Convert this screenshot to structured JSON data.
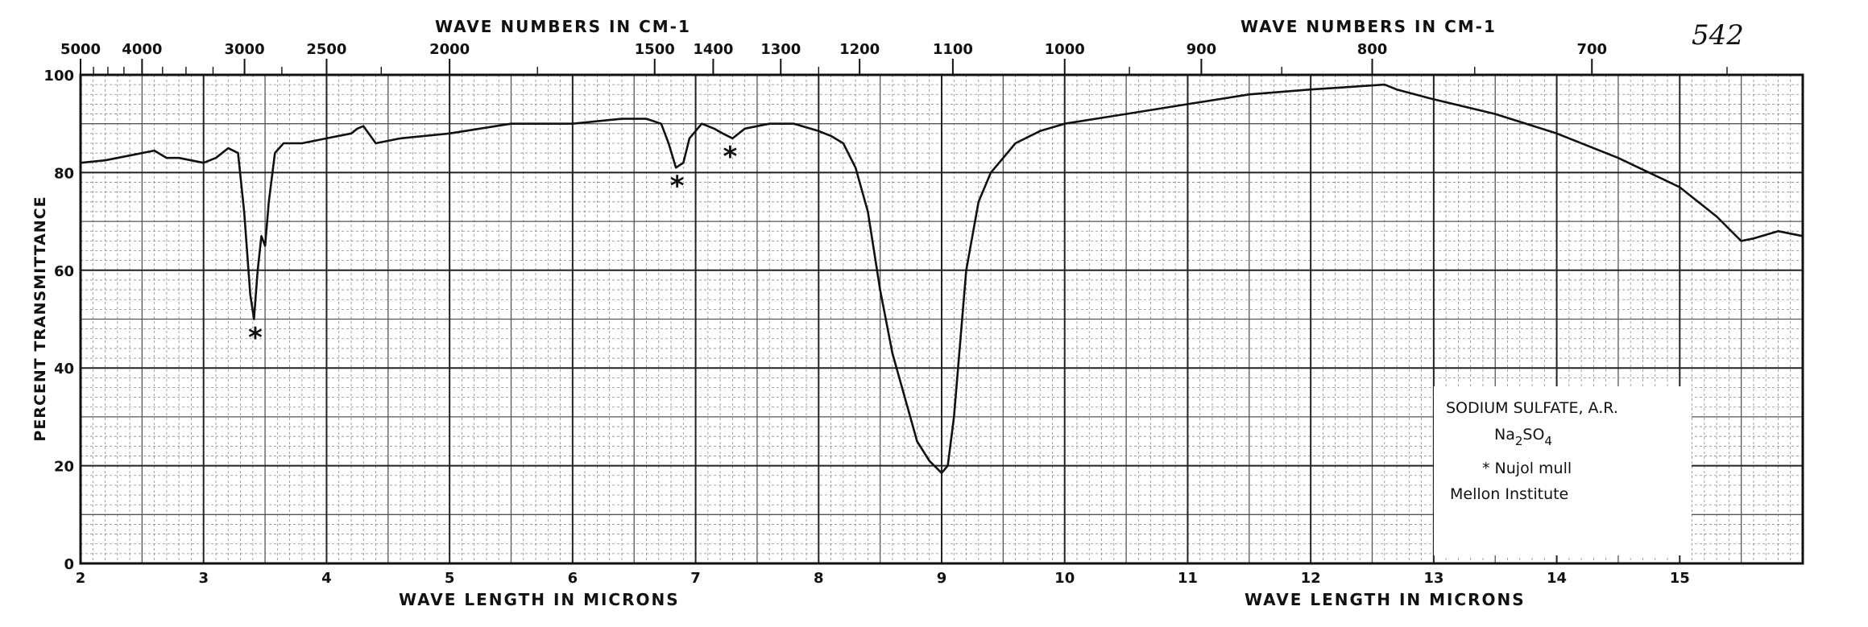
{
  "chart_data": {
    "type": "line",
    "page_number": "542",
    "top_axis_label_left": "WAVE NUMBERS IN CM-1",
    "top_axis_label_right": "WAVE NUMBERS IN CM-1",
    "xlabel_left": "WAVE LENGTH IN MICRONS",
    "xlabel_right": "WAVE LENGTH IN MICRONS",
    "ylabel": "PERCENT TRANSMITTANCE",
    "xlim": [
      2,
      16
    ],
    "ylim": [
      0,
      100
    ],
    "x_ticks": [
      "2",
      "3",
      "4",
      "5",
      "6",
      "7",
      "8",
      "9",
      "10",
      "11",
      "12",
      "13",
      "14",
      "15"
    ],
    "y_ticks": [
      "0",
      "20",
      "40",
      "60",
      "80",
      "100"
    ],
    "top_ticks": [
      {
        "label": "5000",
        "micron": 2.0
      },
      {
        "label": "4000",
        "micron": 2.5
      },
      {
        "label": "3000",
        "micron": 3.333
      },
      {
        "label": "2500",
        "micron": 4.0
      },
      {
        "label": "2000",
        "micron": 5.0
      },
      {
        "label": "1500",
        "micron": 6.667
      },
      {
        "label": "1400",
        "micron": 7.143
      },
      {
        "label": "1300",
        "micron": 7.692
      },
      {
        "label": "1200",
        "micron": 8.333
      },
      {
        "label": "1100",
        "micron": 9.091
      },
      {
        "label": "1000",
        "micron": 10.0
      },
      {
        "label": "900",
        "micron": 11.111
      },
      {
        "label": "800",
        "micron": 12.5
      },
      {
        "label": "700",
        "micron": 14.286
      }
    ],
    "legend_lines": [
      "SODIUM SULFATE, A.R.",
      "Na",
      "2",
      "SO",
      "4",
      "* Nujol mull",
      "Mellon Institute"
    ],
    "annotations": [
      {
        "text": "*",
        "x": 3.42,
        "y": 46
      },
      {
        "text": "*",
        "x": 6.85,
        "y": 77
      },
      {
        "text": "*",
        "x": 7.28,
        "y": 83
      }
    ],
    "series": [
      {
        "values": [
          [
            2.0,
            82
          ],
          [
            2.2,
            82.5
          ],
          [
            2.4,
            83.5
          ],
          [
            2.6,
            84.5
          ],
          [
            2.7,
            83
          ],
          [
            2.8,
            83
          ],
          [
            3.0,
            82
          ],
          [
            3.1,
            83
          ],
          [
            3.2,
            85
          ],
          [
            3.28,
            84
          ],
          [
            3.33,
            72
          ],
          [
            3.38,
            55
          ],
          [
            3.41,
            50
          ],
          [
            3.44,
            60
          ],
          [
            3.47,
            67
          ],
          [
            3.5,
            65
          ],
          [
            3.53,
            74
          ],
          [
            3.58,
            84
          ],
          [
            3.65,
            86
          ],
          [
            3.8,
            86
          ],
          [
            4.0,
            87
          ],
          [
            4.2,
            88
          ],
          [
            4.25,
            89
          ],
          [
            4.3,
            89.5
          ],
          [
            4.4,
            86
          ],
          [
            4.6,
            87
          ],
          [
            5.0,
            88
          ],
          [
            5.5,
            90
          ],
          [
            6.0,
            90
          ],
          [
            6.4,
            91
          ],
          [
            6.6,
            91
          ],
          [
            6.72,
            90
          ],
          [
            6.78,
            86
          ],
          [
            6.84,
            81
          ],
          [
            6.9,
            82
          ],
          [
            6.95,
            87
          ],
          [
            7.05,
            90
          ],
          [
            7.15,
            89
          ],
          [
            7.22,
            88
          ],
          [
            7.3,
            87
          ],
          [
            7.4,
            89
          ],
          [
            7.6,
            90
          ],
          [
            7.8,
            90
          ],
          [
            8.0,
            88.5
          ],
          [
            8.1,
            87.5
          ],
          [
            8.2,
            86
          ],
          [
            8.3,
            81
          ],
          [
            8.4,
            72
          ],
          [
            8.5,
            56
          ],
          [
            8.6,
            43
          ],
          [
            8.7,
            34
          ],
          [
            8.8,
            25
          ],
          [
            8.9,
            21
          ],
          [
            9.0,
            18.5
          ],
          [
            9.05,
            20
          ],
          [
            9.1,
            30
          ],
          [
            9.15,
            45
          ],
          [
            9.2,
            60
          ],
          [
            9.3,
            74
          ],
          [
            9.4,
            80
          ],
          [
            9.6,
            86
          ],
          [
            9.8,
            88.5
          ],
          [
            10.0,
            90
          ],
          [
            10.5,
            92
          ],
          [
            11.0,
            94
          ],
          [
            11.5,
            96
          ],
          [
            12.0,
            97
          ],
          [
            12.3,
            97.5
          ],
          [
            12.6,
            98
          ],
          [
            12.7,
            97
          ],
          [
            13.0,
            95
          ],
          [
            13.5,
            92
          ],
          [
            14.0,
            88
          ],
          [
            14.5,
            83
          ],
          [
            15.0,
            77
          ],
          [
            15.3,
            71
          ],
          [
            15.5,
            66
          ],
          [
            15.6,
            66.5
          ],
          [
            15.8,
            68
          ],
          [
            16.0,
            67
          ]
        ]
      }
    ]
  }
}
